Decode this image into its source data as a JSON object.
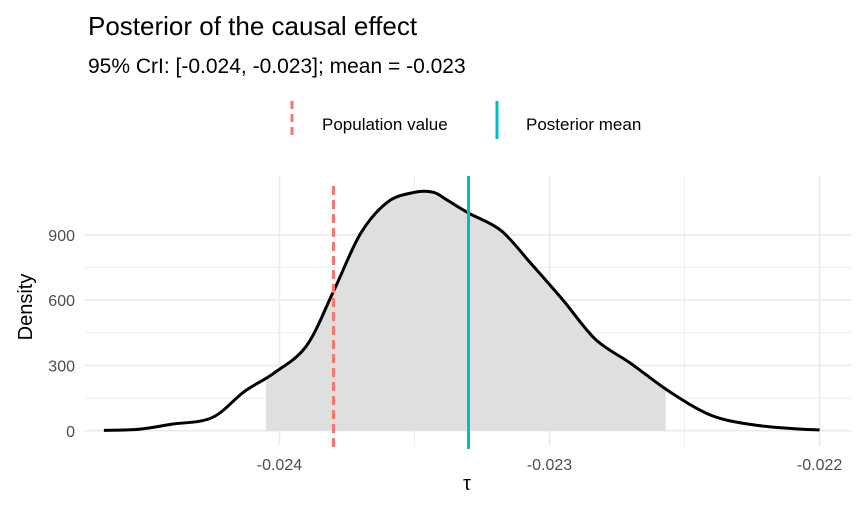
{
  "chart_data": {
    "type": "area",
    "title": "Posterior of the causal effect",
    "subtitle": "95% CrI: [-0.024, -0.023]; mean = -0.023",
    "xlabel": "τ",
    "ylabel": "Density",
    "xlim": [
      -0.02472,
      -0.02188
    ],
    "ylim": [
      -70,
      1170
    ],
    "x_ticks": [
      -0.024,
      -0.023,
      -0.022
    ],
    "x_tick_labels": [
      "-0.024",
      "-0.023",
      "-0.022"
    ],
    "y_ticks": [
      0,
      300,
      600,
      900
    ],
    "y_tick_labels": [
      "0",
      "300",
      "600",
      "900"
    ],
    "grid": true,
    "legend": {
      "position": "top",
      "entries": [
        {
          "label": "Population value",
          "color": "#F8766D",
          "style": "dashed"
        },
        {
          "label": "Posterior mean",
          "color": "#00BFC4",
          "style": "solid"
        }
      ]
    },
    "density": {
      "x": [
        -0.02465,
        -0.02452,
        -0.0244,
        -0.02425,
        -0.02413,
        -0.02402,
        -0.0239,
        -0.0238,
        -0.0237,
        -0.0236,
        -0.0235,
        -0.02343,
        -0.02338,
        -0.0233,
        -0.02318,
        -0.02307,
        -0.02295,
        -0.02283,
        -0.0227,
        -0.02255,
        -0.0224,
        -0.02225,
        -0.0221,
        -0.022
      ],
      "y": [
        2,
        7,
        30,
        60,
        180,
        265,
        390,
        640,
        905,
        1050,
        1095,
        1095,
        1060,
        1000,
        920,
        770,
        600,
        420,
        310,
        175,
        70,
        28,
        10,
        4
      ]
    },
    "credible_interval_shaded": [
      -0.02405,
      -0.02257
    ],
    "population_value": -0.0238,
    "posterior_mean": -0.0233,
    "colors": {
      "density_line": "#000000",
      "shaded_area": "#dfdfdf",
      "grid": "#ebebeb",
      "population_value": "#F8766D",
      "posterior_mean": "#00BFC4"
    }
  }
}
